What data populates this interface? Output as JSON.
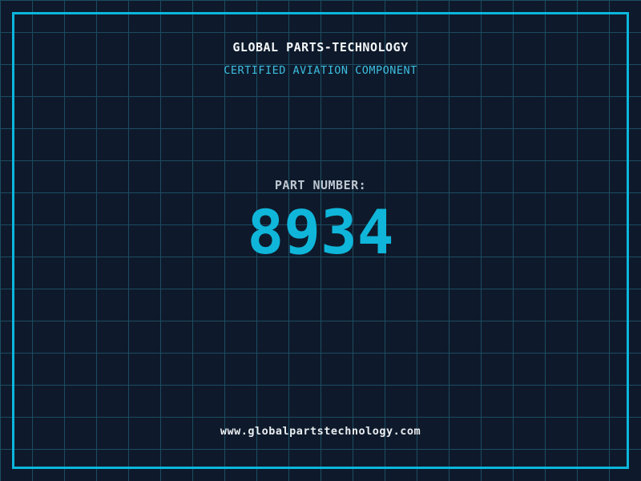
{
  "screen": {
    "title": "GLOBAL PARTS-TECHNOLOGY",
    "subtitle": "CERTIFIED AVIATION COMPONENT",
    "part_label": "PART NUMBER:",
    "part_number": "8934",
    "website": "www.globalpartstechnology.com"
  },
  "colors": {
    "background": "#0e1a2b",
    "grid_line": "#1c4c61",
    "frame_accent": "#0cb6dc",
    "subtitle_cyan": "#3dbde0",
    "part_number_cyan": "#0fb6da",
    "label_gray": "#bdc6d0",
    "title_white": "#f4f7fa",
    "website_white": "#e9edf0"
  }
}
